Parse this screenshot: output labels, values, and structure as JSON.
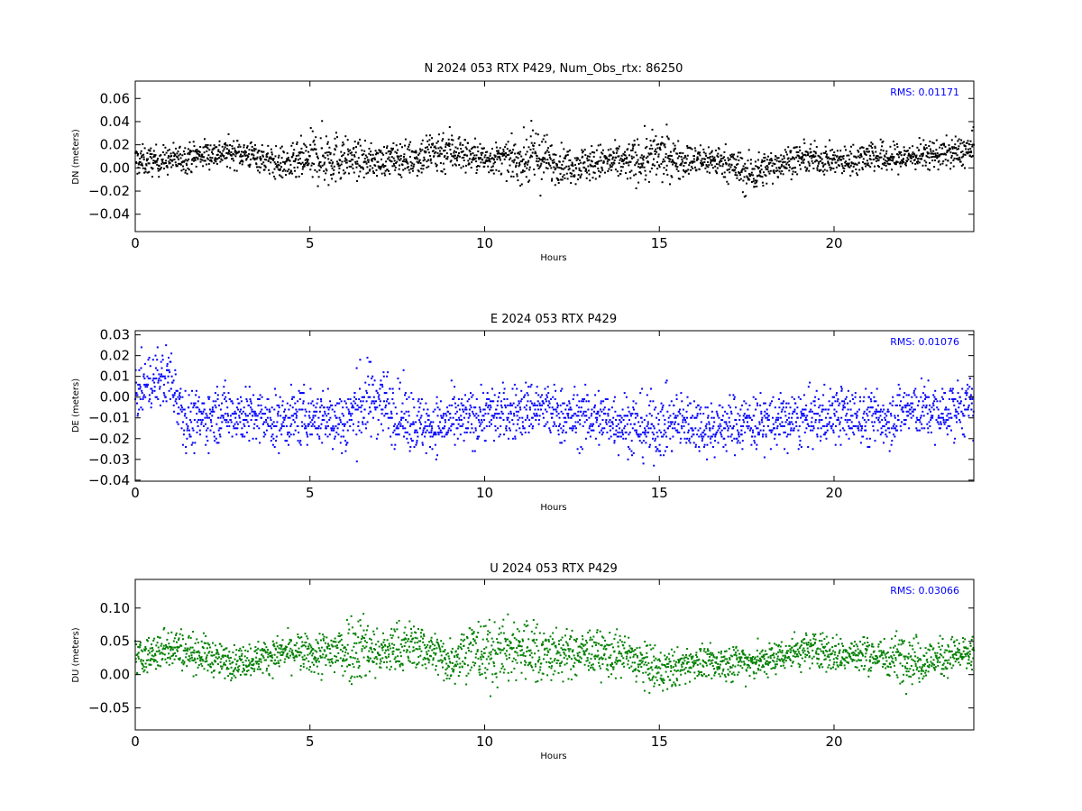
{
  "chart_data": [
    {
      "type": "scatter",
      "title": "N 2024 053 RTX  P429, Num_Obs_rtx: 86250",
      "xlabel": "Hours",
      "ylabel": "DN (meters)",
      "xlim": [
        0,
        24
      ],
      "ylim": [
        -0.055,
        0.075
      ],
      "xticks": [
        0,
        5,
        10,
        15,
        20
      ],
      "xtick_labels": [
        "0",
        "5",
        "10",
        "15",
        "20"
      ],
      "yticks": [
        -0.04,
        -0.02,
        0.0,
        0.02,
        0.04,
        0.06
      ],
      "ytick_labels": [
        "−0.04",
        "−0.02",
        "0.00",
        "0.02",
        "0.04",
        "0.06"
      ],
      "annotation": "RMS:  0.01171",
      "annotation_color": "#0000ff",
      "color": "#000000",
      "series": [
        {
          "values_x": [
            0,
            0.5,
            1,
            1.5,
            2,
            2.5,
            3,
            3.5,
            4,
            4.5,
            5,
            5.5,
            6,
            6.5,
            7,
            7.5,
            8,
            8.5,
            9,
            9.5,
            10,
            10.5,
            11,
            11.5,
            12,
            12.5,
            13,
            13.5,
            14,
            14.5,
            15,
            15.5,
            16,
            16.5,
            17,
            17.5,
            18,
            18.5,
            19,
            19.5,
            20,
            20.5,
            21,
            21.5,
            22,
            22.5,
            23,
            23.5,
            24
          ],
          "center": [
            0.006,
            0.006,
            0.007,
            0.009,
            0.012,
            0.013,
            0.013,
            0.01,
            0.004,
            0.003,
            0.008,
            0.01,
            0.008,
            0.006,
            0.006,
            0.008,
            0.009,
            0.013,
            0.016,
            0.011,
            0.008,
            0.008,
            0.006,
            0.01,
            0.004,
            0.003,
            0.004,
            0.005,
            0.005,
            0.007,
            0.01,
            0.008,
            0.006,
            0.007,
            0.004,
            -0.006,
            -0.001,
            0.005,
            0.008,
            0.008,
            0.006,
            0.006,
            0.012,
            0.008,
            0.009,
            0.011,
            0.012,
            0.013,
            0.016
          ],
          "spread": [
            0.012,
            0.011,
            0.011,
            0.011,
            0.011,
            0.011,
            0.011,
            0.011,
            0.012,
            0.014,
            0.019,
            0.024,
            0.016,
            0.013,
            0.012,
            0.012,
            0.014,
            0.019,
            0.018,
            0.013,
            0.012,
            0.012,
            0.016,
            0.026,
            0.014,
            0.013,
            0.014,
            0.014,
            0.014,
            0.018,
            0.021,
            0.014,
            0.012,
            0.012,
            0.013,
            0.017,
            0.013,
            0.012,
            0.011,
            0.011,
            0.011,
            0.011,
            0.013,
            0.012,
            0.011,
            0.011,
            0.011,
            0.012,
            0.013
          ]
        }
      ]
    },
    {
      "type": "scatter",
      "title": "E 2024 053 RTX  P429",
      "xlabel": "Hours",
      "ylabel": "DE (meters)",
      "xlim": [
        0,
        24
      ],
      "ylim": [
        -0.0405,
        0.032
      ],
      "xticks": [
        0,
        5,
        10,
        15,
        20
      ],
      "xtick_labels": [
        "0",
        "5",
        "10",
        "15",
        "20"
      ],
      "yticks": [
        -0.04,
        -0.03,
        -0.02,
        -0.01,
        0.0,
        0.01,
        0.02,
        0.03
      ],
      "ytick_labels": [
        "−0.04",
        "−0.03",
        "−0.02",
        "−0.01",
        "0.00",
        "0.01",
        "0.02",
        "0.03"
      ],
      "annotation": "RMS:  0.01076",
      "annotation_color": "#0000ff",
      "color": "#0000ff",
      "series": [
        {
          "values_x": [
            0,
            0.5,
            1,
            1.5,
            2,
            2.5,
            3,
            3.5,
            4,
            4.5,
            5,
            5.5,
            6,
            6.5,
            7,
            7.5,
            8,
            8.5,
            9,
            9.5,
            10,
            10.5,
            11,
            11.5,
            12,
            12.5,
            13,
            13.5,
            14,
            14.5,
            15,
            15.5,
            16,
            16.5,
            17,
            17.5,
            18,
            18.5,
            19,
            19.5,
            20,
            20.5,
            21,
            21.5,
            22,
            22.5,
            23,
            23.5,
            24
          ],
          "center": [
            0.002,
            0.008,
            0.01,
            -0.012,
            -0.01,
            -0.007,
            -0.008,
            -0.01,
            -0.012,
            -0.01,
            -0.009,
            -0.01,
            -0.012,
            -0.003,
            0.0,
            -0.008,
            -0.012,
            -0.014,
            -0.012,
            -0.011,
            -0.008,
            -0.008,
            -0.007,
            -0.005,
            -0.008,
            -0.01,
            -0.01,
            -0.01,
            -0.012,
            -0.015,
            -0.014,
            -0.012,
            -0.012,
            -0.015,
            -0.013,
            -0.012,
            -0.012,
            -0.012,
            -0.011,
            -0.01,
            -0.008,
            -0.009,
            -0.01,
            -0.01,
            -0.006,
            -0.006,
            -0.008,
            -0.006,
            -0.004
          ],
          "spread": [
            0.012,
            0.012,
            0.014,
            0.013,
            0.012,
            0.012,
            0.012,
            0.012,
            0.012,
            0.012,
            0.012,
            0.012,
            0.015,
            0.017,
            0.016,
            0.014,
            0.013,
            0.012,
            0.012,
            0.012,
            0.012,
            0.012,
            0.012,
            0.012,
            0.012,
            0.012,
            0.013,
            0.013,
            0.013,
            0.014,
            0.014,
            0.013,
            0.012,
            0.012,
            0.012,
            0.012,
            0.012,
            0.012,
            0.012,
            0.012,
            0.012,
            0.012,
            0.012,
            0.012,
            0.012,
            0.012,
            0.012,
            0.012,
            0.012
          ]
        }
      ]
    },
    {
      "type": "scatter",
      "title": "U 2024 053 RTX  P429",
      "xlabel": "Hours",
      "ylabel": "DU (meters)",
      "xlim": [
        0,
        24
      ],
      "ylim": [
        -0.083,
        0.143
      ],
      "xticks": [
        0,
        5,
        10,
        15,
        20
      ],
      "xtick_labels": [
        "0",
        "5",
        "10",
        "15",
        "20"
      ],
      "yticks": [
        -0.05,
        0.0,
        0.05,
        0.1
      ],
      "ytick_labels": [
        "−0.05",
        "0.00",
        "0.05",
        "0.10"
      ],
      "annotation": "RMS:  0.03066",
      "annotation_color": "#0000ff",
      "color": "#008000",
      "series": [
        {
          "values_x": [
            0,
            0.5,
            1,
            1.5,
            2,
            2.5,
            3,
            3.5,
            4,
            4.5,
            5,
            5.5,
            6,
            6.5,
            7,
            7.5,
            8,
            8.5,
            9,
            9.5,
            10,
            10.5,
            11,
            11.5,
            12,
            12.5,
            13,
            13.5,
            14,
            14.5,
            15,
            15.5,
            16,
            16.5,
            17,
            17.5,
            18,
            18.5,
            19,
            19.5,
            20,
            20.5,
            21,
            21.5,
            22,
            22.5,
            23,
            23.5,
            24
          ],
          "center": [
            0.025,
            0.03,
            0.045,
            0.035,
            0.03,
            0.02,
            0.02,
            0.025,
            0.03,
            0.035,
            0.03,
            0.03,
            0.04,
            0.045,
            0.03,
            0.04,
            0.045,
            0.035,
            0.02,
            0.04,
            0.03,
            0.035,
            0.04,
            0.035,
            0.03,
            0.03,
            0.035,
            0.03,
            0.03,
            0.015,
            0.005,
            0.01,
            0.02,
            0.015,
            0.02,
            0.02,
            0.02,
            0.03,
            0.035,
            0.04,
            0.03,
            0.03,
            0.03,
            0.025,
            0.03,
            0.02,
            0.025,
            0.03,
            0.03
          ],
          "spread": [
            0.025,
            0.025,
            0.03,
            0.025,
            0.025,
            0.022,
            0.022,
            0.022,
            0.022,
            0.025,
            0.025,
            0.035,
            0.045,
            0.05,
            0.03,
            0.035,
            0.03,
            0.03,
            0.03,
            0.04,
            0.045,
            0.04,
            0.045,
            0.045,
            0.035,
            0.03,
            0.03,
            0.03,
            0.03,
            0.03,
            0.03,
            0.025,
            0.022,
            0.022,
            0.025,
            0.025,
            0.022,
            0.022,
            0.025,
            0.025,
            0.025,
            0.025,
            0.025,
            0.025,
            0.035,
            0.03,
            0.025,
            0.025,
            0.025
          ]
        }
      ]
    }
  ]
}
